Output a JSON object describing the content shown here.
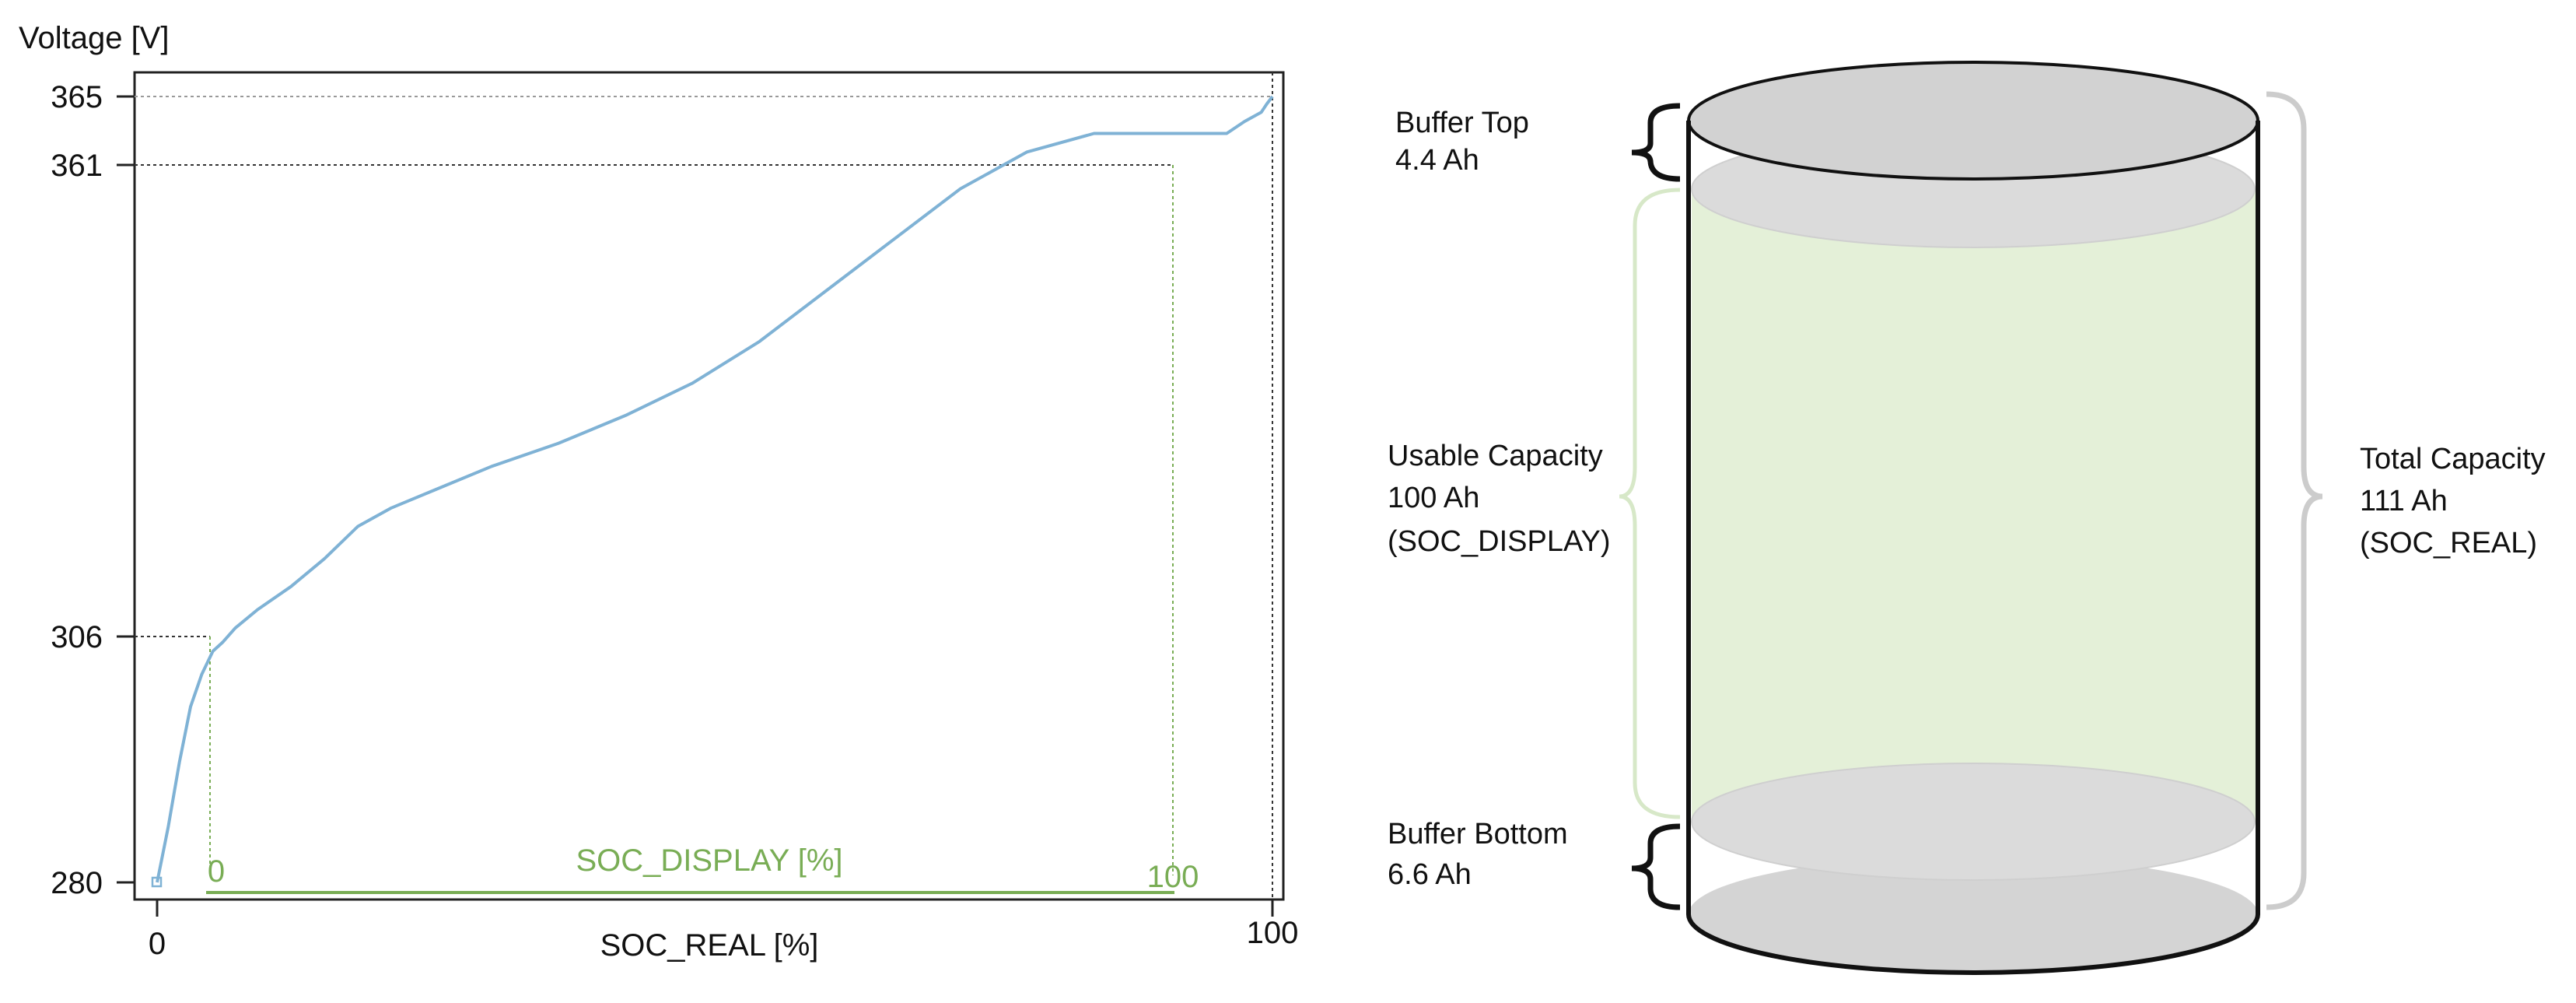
{
  "left_chart": {
    "ylabel": "Voltage [V]",
    "xlabel": "SOC_REAL [%]",
    "inner_axis_label": "SOC_DISPLAY [%]",
    "y_ticks": [
      "280",
      "306",
      "361",
      "365"
    ],
    "x_ticks": [
      "0",
      "100"
    ],
    "inner_ticks": [
      "0",
      "100"
    ]
  },
  "chart_data": {
    "type": "line",
    "title": "",
    "xlabel": "SOC_REAL [%]",
    "ylabel": "Voltage [V]",
    "xlim": [
      0,
      100
    ],
    "ylim": [
      280,
      365
    ],
    "grid": false,
    "x_ticks": [
      0,
      100
    ],
    "y_ticks": [
      280,
      306,
      361,
      365
    ],
    "secondary_x_axis": {
      "label": "SOC_DISPLAY [%]",
      "ticks": [
        0,
        100
      ],
      "range_in_soc_real": [
        5.9,
        95.9
      ]
    },
    "series": [
      {
        "name": "",
        "x": [
          0,
          1,
          2,
          3,
          4,
          5,
          5.9,
          7,
          9,
          12,
          15,
          18,
          21,
          25,
          30,
          36,
          42,
          48,
          54,
          60,
          66,
          72,
          78,
          84,
          90,
          95.9,
          97.5,
          99,
          99.5,
          100
        ],
        "y": [
          280,
          286,
          293,
          299,
          302.5,
          305,
          306,
          307.5,
          309.5,
          312,
          315,
          318.5,
          320.5,
          322.5,
          325,
          327.5,
          330.5,
          334,
          338.5,
          344,
          349.5,
          355,
          359,
          361,
          361,
          361,
          362.3,
          363.3,
          364.2,
          365
        ]
      }
    ]
  },
  "cylinder": {
    "buffer_top": {
      "title": "Buffer Top",
      "value": "4.4 Ah"
    },
    "usable": {
      "title": "Usable Capacity",
      "value": "100 Ah",
      "tag": "(SOC_DISPLAY)"
    },
    "buffer_bottom": {
      "title": "Buffer Bottom",
      "value": "6.6 Ah"
    },
    "total": {
      "title": "Total Capacity",
      "value": "111 Ah",
      "tag": "(SOC_REAL)"
    }
  },
  "colors": {
    "curve": "#7fb2d5",
    "green": "#79ad55",
    "green_fill": "#e4f0d8",
    "grey_fill": "#d6d6d6",
    "axis": "#222222"
  }
}
